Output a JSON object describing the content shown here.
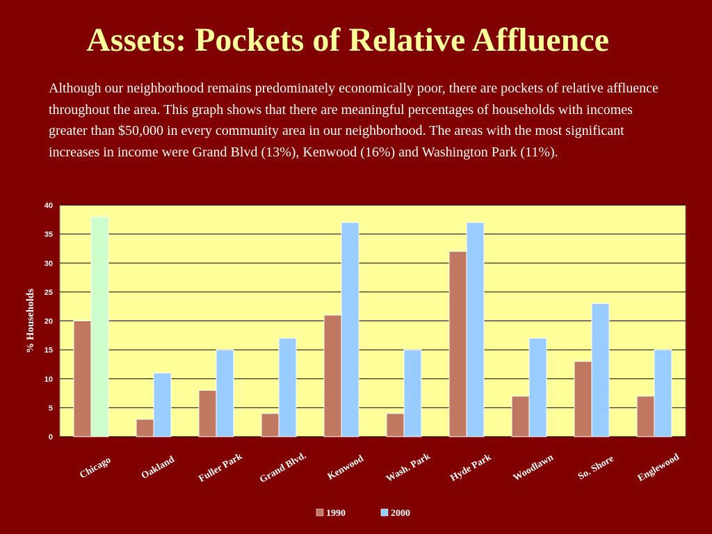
{
  "slide": {
    "title": "Assets: Pockets of Relative Affluence",
    "body": "Although our neighborhood remains predominately economically poor, there are pockets of relative affluence throughout the area. This graph shows that there are meaningful percentages of households with incomes greater than $50,000 in every community area in our neighborhood. The areas with the most significant increases in income were Grand Blvd (13%), Kenwood (16%) and Washington Park (11%)."
  },
  "chart_data": {
    "type": "bar",
    "title": "",
    "xlabel": "",
    "ylabel": "% Households",
    "ylim": [
      0,
      40
    ],
    "yticks": [
      0,
      5,
      10,
      15,
      20,
      25,
      30,
      35,
      40
    ],
    "grid": true,
    "legend_position": "bottom",
    "plot_background": "#ffff99",
    "categories": [
      "Chicago",
      "Oakland",
      "Fuller Park",
      "Grand Blvd.",
      "Kenwood",
      "Wash. Park",
      "Hyde Park",
      "Woodlawn",
      "So. Shore",
      "Englewood"
    ],
    "series": [
      {
        "name": "1990",
        "color": "#c07860",
        "values": [
          20,
          3,
          8,
          4,
          21,
          4,
          32,
          7,
          13,
          7
        ]
      },
      {
        "name": "2000",
        "color": "#99ccff",
        "values": [
          38,
          11,
          15,
          17,
          37,
          15,
          37,
          17,
          23,
          15
        ]
      }
    ],
    "highlight": {
      "series": 1,
      "index": 0,
      "color": "#ccffcc"
    }
  }
}
